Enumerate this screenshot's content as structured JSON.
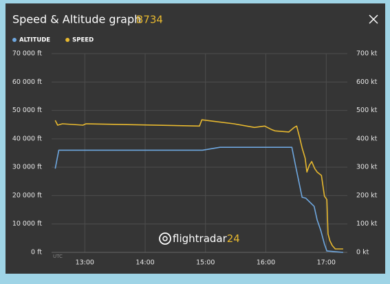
{
  "chart_data": {
    "type": "line",
    "title": "Speed & Altitude graph",
    "subtitle": "B734",
    "x_label": "UTC",
    "watermark_brand": "flightradar",
    "watermark_number": "24",
    "xlim": [
      12.45,
      17.35
    ],
    "xticks": [
      {
        "value": 13,
        "label": "13:00"
      },
      {
        "value": 14,
        "label": "14:00"
      },
      {
        "value": 15,
        "label": "15:00"
      },
      {
        "value": 16,
        "label": "16:00"
      },
      {
        "value": 17,
        "label": "17:00"
      }
    ],
    "ylim": [
      0,
      70000
    ],
    "yticks": [
      {
        "value": 0,
        "label": "0 ft"
      },
      {
        "value": 10000,
        "label": "10 000 ft"
      },
      {
        "value": 20000,
        "label": "20 000 ft"
      },
      {
        "value": 30000,
        "label": "30 000 ft"
      },
      {
        "value": 40000,
        "label": "40 000 ft"
      },
      {
        "value": 50000,
        "label": "50 000 ft"
      },
      {
        "value": 60000,
        "label": "60 000 ft"
      },
      {
        "value": 70000,
        "label": "70 000 ft"
      }
    ],
    "y2lim": [
      0,
      700
    ],
    "y2ticks": [
      {
        "value": 0,
        "label": "0 kt"
      },
      {
        "value": 100,
        "label": "100 kt"
      },
      {
        "value": 200,
        "label": "200 kt"
      },
      {
        "value": 300,
        "label": "300 kt"
      },
      {
        "value": 400,
        "label": "400 kt"
      },
      {
        "value": 500,
        "label": "500 kt"
      },
      {
        "value": 600,
        "label": "600 kt"
      },
      {
        "value": 700,
        "label": "700 kt"
      }
    ],
    "grid": true,
    "series": [
      {
        "name": "ALTITUDE",
        "color": "#6fa8e0",
        "x": [
          12.51,
          12.57,
          14.95,
          15.24,
          16.43,
          16.49,
          16.6,
          16.66,
          16.8,
          16.85,
          16.91,
          16.97,
          17.01,
          17.28
        ],
        "values": [
          29500,
          36000,
          36000,
          37000,
          37000,
          30750,
          19400,
          19100,
          16200,
          11400,
          7700,
          2900,
          500,
          0
        ]
      },
      {
        "name": "SPEED",
        "color": "#e8b92f",
        "axis": "y2",
        "x": [
          12.51,
          12.55,
          12.63,
          12.97,
          13.02,
          14.9,
          14.94,
          15.13,
          15.47,
          15.81,
          15.98,
          16.09,
          16.15,
          16.38,
          16.47,
          16.51,
          16.56,
          16.6,
          16.65,
          16.68,
          16.72,
          16.76,
          16.81,
          16.85,
          16.92,
          16.97,
          17.01,
          17.03,
          17.06,
          17.1,
          17.15,
          17.28
        ],
        "values": [
          465,
          448,
          453,
          448,
          453,
          445,
          467,
          462,
          453,
          440,
          445,
          433,
          428,
          424,
          440,
          445,
          404,
          368,
          332,
          283,
          307,
          320,
          295,
          283,
          271,
          198,
          186,
          65,
          41,
          24,
          12,
          12
        ]
      }
    ]
  }
}
